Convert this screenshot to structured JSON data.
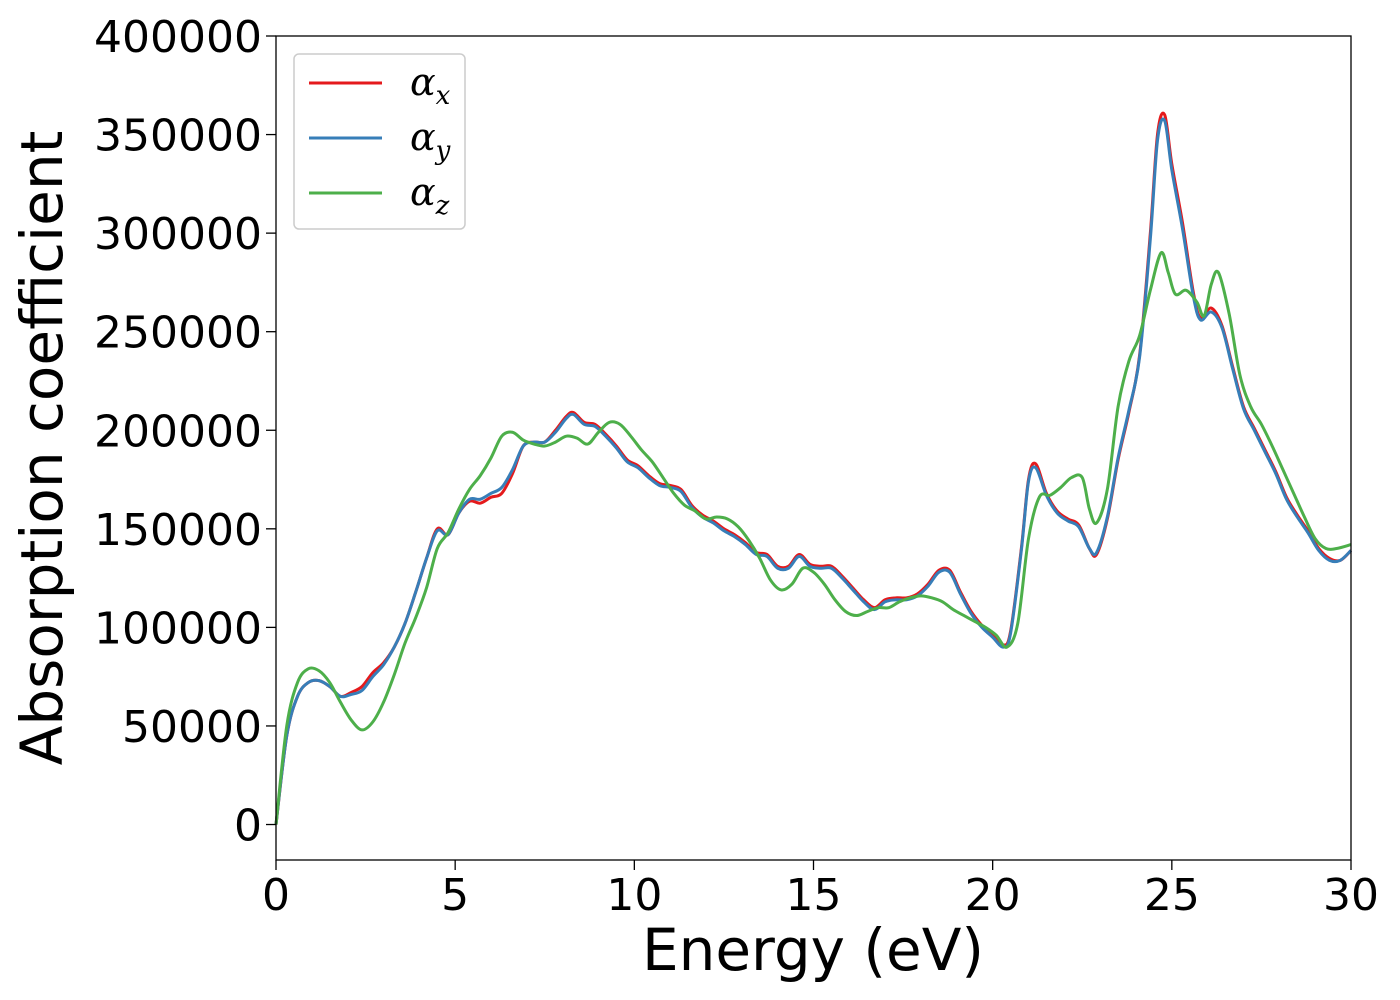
{
  "chart_data": {
    "type": "line",
    "title": "",
    "xlabel": "Energy (eV)",
    "ylabel": "Absorption coefficient",
    "xlim": [
      0,
      30
    ],
    "ylim": [
      -18000,
      400000
    ],
    "xticks": [
      0,
      5,
      10,
      15,
      20,
      25,
      30
    ],
    "yticks": [
      0,
      50000,
      100000,
      150000,
      200000,
      250000,
      300000,
      350000,
      400000
    ],
    "grid": false,
    "legend": "top-left",
    "series": [
      {
        "name": "α",
        "subscript": "x",
        "color": "#e41a1c",
        "x": [
          0,
          0.3,
          0.6,
          0.9,
          1.2,
          1.5,
          1.8,
          2.1,
          2.4,
          2.7,
          3.0,
          3.3,
          3.6,
          3.9,
          4.2,
          4.5,
          4.8,
          5.1,
          5.4,
          5.7,
          6.0,
          6.3,
          6.6,
          6.9,
          7.2,
          7.5,
          7.8,
          8.1,
          8.3,
          8.6,
          8.9,
          9.2,
          9.5,
          9.8,
          10.1,
          10.4,
          10.7,
          11.0,
          11.3,
          11.6,
          11.9,
          12.2,
          12.5,
          12.8,
          13.1,
          13.4,
          13.7,
          14.0,
          14.3,
          14.6,
          14.9,
          15.2,
          15.5,
          15.8,
          16.1,
          16.4,
          16.7,
          17.0,
          17.3,
          17.6,
          17.9,
          18.2,
          18.5,
          18.8,
          19.1,
          19.4,
          19.7,
          20.0,
          20.3,
          20.5,
          20.8,
          21.0,
          21.2,
          21.5,
          21.8,
          22.1,
          22.4,
          22.7,
          22.9,
          23.2,
          23.5,
          23.8,
          24.1,
          24.4,
          24.6,
          24.8,
          25.0,
          25.3,
          25.6,
          25.8,
          26.1,
          26.4,
          26.7,
          27.0,
          27.3,
          27.6,
          27.9,
          28.2,
          28.5,
          28.8,
          29.1,
          29.4,
          29.7,
          30.0
        ],
        "y": [
          0,
          45000,
          65000,
          72000,
          73000,
          70000,
          65000,
          67000,
          70000,
          77000,
          82000,
          90000,
          102000,
          118000,
          135000,
          150000,
          147000,
          158000,
          164000,
          163000,
          166000,
          168000,
          178000,
          192000,
          194000,
          194000,
          200000,
          207000,
          209000,
          204000,
          203000,
          198000,
          192000,
          185000,
          182000,
          177000,
          173000,
          172000,
          170000,
          162000,
          157000,
          154000,
          150000,
          147000,
          143000,
          138000,
          137000,
          131000,
          131000,
          137000,
          132000,
          131000,
          131000,
          126000,
          120000,
          114000,
          110000,
          114000,
          115000,
          115000,
          117000,
          122000,
          129000,
          129000,
          118000,
          108000,
          101000,
          96000,
          91000,
          98000,
          140000,
          175000,
          183000,
          168000,
          159000,
          155000,
          152000,
          140000,
          137000,
          155000,
          185000,
          209000,
          238000,
          300000,
          350000,
          360000,
          335000,
          305000,
          270000,
          257000,
          262000,
          253000,
          232000,
          212000,
          201000,
          190000,
          179000,
          166000,
          157000,
          149000,
          140000,
          135000,
          134000,
          139000
        ]
      },
      {
        "name": "α",
        "subscript": "y",
        "color": "#377eb8",
        "x": [
          0,
          0.3,
          0.6,
          0.9,
          1.2,
          1.5,
          1.8,
          2.1,
          2.4,
          2.7,
          3.0,
          3.3,
          3.6,
          3.9,
          4.2,
          4.5,
          4.8,
          5.1,
          5.4,
          5.7,
          6.0,
          6.3,
          6.6,
          6.9,
          7.2,
          7.5,
          7.8,
          8.1,
          8.3,
          8.6,
          8.9,
          9.2,
          9.5,
          9.8,
          10.1,
          10.4,
          10.7,
          11.0,
          11.3,
          11.6,
          11.9,
          12.2,
          12.5,
          12.8,
          13.1,
          13.4,
          13.7,
          14.0,
          14.3,
          14.6,
          14.9,
          15.2,
          15.5,
          15.8,
          16.1,
          16.4,
          16.7,
          17.0,
          17.3,
          17.6,
          17.9,
          18.2,
          18.5,
          18.8,
          19.1,
          19.4,
          19.7,
          20.0,
          20.3,
          20.5,
          20.8,
          21.0,
          21.2,
          21.5,
          21.8,
          22.1,
          22.4,
          22.7,
          22.9,
          23.2,
          23.5,
          23.8,
          24.1,
          24.4,
          24.6,
          24.8,
          25.0,
          25.3,
          25.6,
          25.8,
          26.1,
          26.4,
          26.7,
          27.0,
          27.3,
          27.6,
          27.9,
          28.2,
          28.5,
          28.8,
          29.1,
          29.4,
          29.7,
          30.0
        ],
        "y": [
          0,
          45000,
          65000,
          72000,
          73000,
          70000,
          65000,
          66000,
          68000,
          75000,
          81000,
          90000,
          102000,
          118000,
          135000,
          149000,
          147000,
          158000,
          165000,
          165000,
          168000,
          171000,
          180000,
          192000,
          194000,
          194000,
          199000,
          206000,
          208000,
          203000,
          202000,
          197000,
          191000,
          184000,
          181000,
          176000,
          172000,
          171000,
          169000,
          161000,
          156000,
          153000,
          149000,
          146000,
          142000,
          137000,
          136000,
          130000,
          130000,
          136000,
          131000,
          130000,
          130000,
          125000,
          119000,
          113000,
          109000,
          113000,
          114000,
          114000,
          116000,
          121000,
          128000,
          128000,
          117000,
          107000,
          100000,
          95000,
          90000,
          97000,
          139000,
          174000,
          181000,
          167000,
          158000,
          154000,
          151000,
          140000,
          138000,
          156000,
          186000,
          210000,
          237000,
          297000,
          347000,
          357000,
          332000,
          302000,
          268000,
          256000,
          260000,
          252000,
          231000,
          211000,
          200000,
          189000,
          178000,
          165000,
          156000,
          148000,
          139000,
          134000,
          134000,
          139000
        ]
      },
      {
        "name": "α",
        "subscript": "z",
        "color": "#4daf4a",
        "x": [
          0,
          0.3,
          0.6,
          0.9,
          1.2,
          1.5,
          1.8,
          2.1,
          2.4,
          2.7,
          3.0,
          3.3,
          3.6,
          3.9,
          4.2,
          4.5,
          4.8,
          5.1,
          5.4,
          5.7,
          6.0,
          6.3,
          6.6,
          6.9,
          7.2,
          7.5,
          7.8,
          8.1,
          8.4,
          8.7,
          9.0,
          9.3,
          9.6,
          9.9,
          10.2,
          10.5,
          10.8,
          11.1,
          11.4,
          11.7,
          12.0,
          12.3,
          12.6,
          12.9,
          13.2,
          13.5,
          13.8,
          14.1,
          14.4,
          14.7,
          15.0,
          15.3,
          15.6,
          15.9,
          16.2,
          16.5,
          16.8,
          17.1,
          17.4,
          17.7,
          18.0,
          18.3,
          18.6,
          18.9,
          19.2,
          19.5,
          19.8,
          20.1,
          20.4,
          20.7,
          21.0,
          21.3,
          21.6,
          21.9,
          22.2,
          22.5,
          22.7,
          22.9,
          23.2,
          23.5,
          23.8,
          24.1,
          24.4,
          24.7,
          24.9,
          25.1,
          25.4,
          25.7,
          25.9,
          26.1,
          26.3,
          26.6,
          26.9,
          27.2,
          27.5,
          27.8,
          28.1,
          28.4,
          28.7,
          29.0,
          29.3,
          29.6,
          30.0
        ],
        "y": [
          0,
          50000,
          72000,
          79000,
          78000,
          72000,
          62000,
          53000,
          48000,
          52000,
          62000,
          76000,
          92000,
          105000,
          120000,
          140000,
          148000,
          160000,
          170000,
          177000,
          186000,
          197000,
          199000,
          195000,
          193000,
          192000,
          194000,
          197000,
          196000,
          193000,
          199000,
          204000,
          203000,
          197000,
          190000,
          184000,
          176000,
          168000,
          162000,
          159000,
          155000,
          156000,
          155000,
          151000,
          144000,
          135000,
          124000,
          119000,
          122000,
          130000,
          128000,
          122000,
          114000,
          108000,
          106000,
          108000,
          110000,
          110000,
          113000,
          115000,
          116000,
          115000,
          113000,
          109000,
          106000,
          103000,
          100000,
          96000,
          90000,
          102000,
          145000,
          166000,
          167000,
          171000,
          176000,
          176000,
          160000,
          153000,
          170000,
          212000,
          235000,
          248000,
          271000,
          290000,
          280000,
          269000,
          271000,
          265000,
          258000,
          274000,
          280000,
          259000,
          228000,
          212000,
          203000,
          192000,
          180000,
          168000,
          156000,
          145000,
          140000,
          140000,
          142000
        ]
      }
    ]
  }
}
